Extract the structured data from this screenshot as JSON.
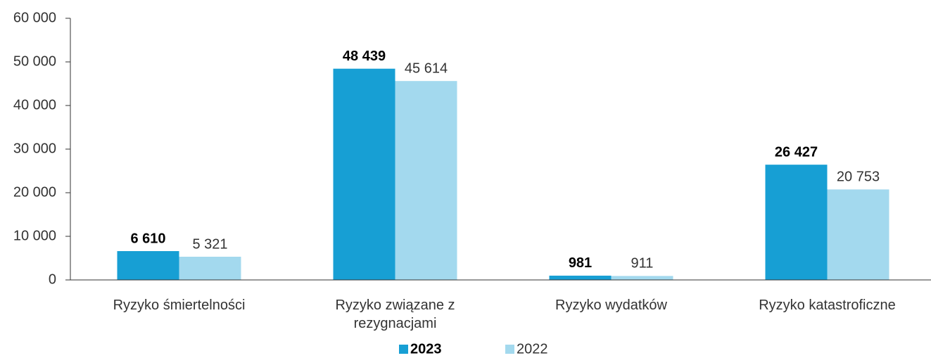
{
  "chart_data": {
    "type": "bar",
    "categories": [
      "Ryzyko śmiertelności",
      "Ryzyko związane z rezygnacjami",
      "Ryzyko wydatków",
      "Ryzyko katastroficzne"
    ],
    "series": [
      {
        "name": "2023",
        "color": "#179fd4",
        "values": [
          6610,
          48439,
          981,
          26427
        ],
        "value_labels": [
          "6 610",
          "48 439",
          "981",
          "26 427"
        ]
      },
      {
        "name": "2022",
        "color": "#a3d9ee",
        "values": [
          5321,
          45614,
          911,
          20753
        ],
        "value_labels": [
          "5 321",
          "45 614",
          "911",
          "20 753"
        ]
      }
    ],
    "ylim": [
      0,
      60000
    ],
    "yticks": [
      0,
      {
        "value": 10000,
        "label": "10 000"
      },
      {
        "value": 20000,
        "label": "20 000"
      },
      {
        "value": 30000,
        "label": "30 000"
      },
      {
        "value": 40000,
        "label": "40 000"
      },
      {
        "value": 50000,
        "label": "50 000"
      },
      {
        "value": 60000,
        "label": "60 000"
      }
    ],
    "grid": false,
    "legend": "bottom"
  }
}
